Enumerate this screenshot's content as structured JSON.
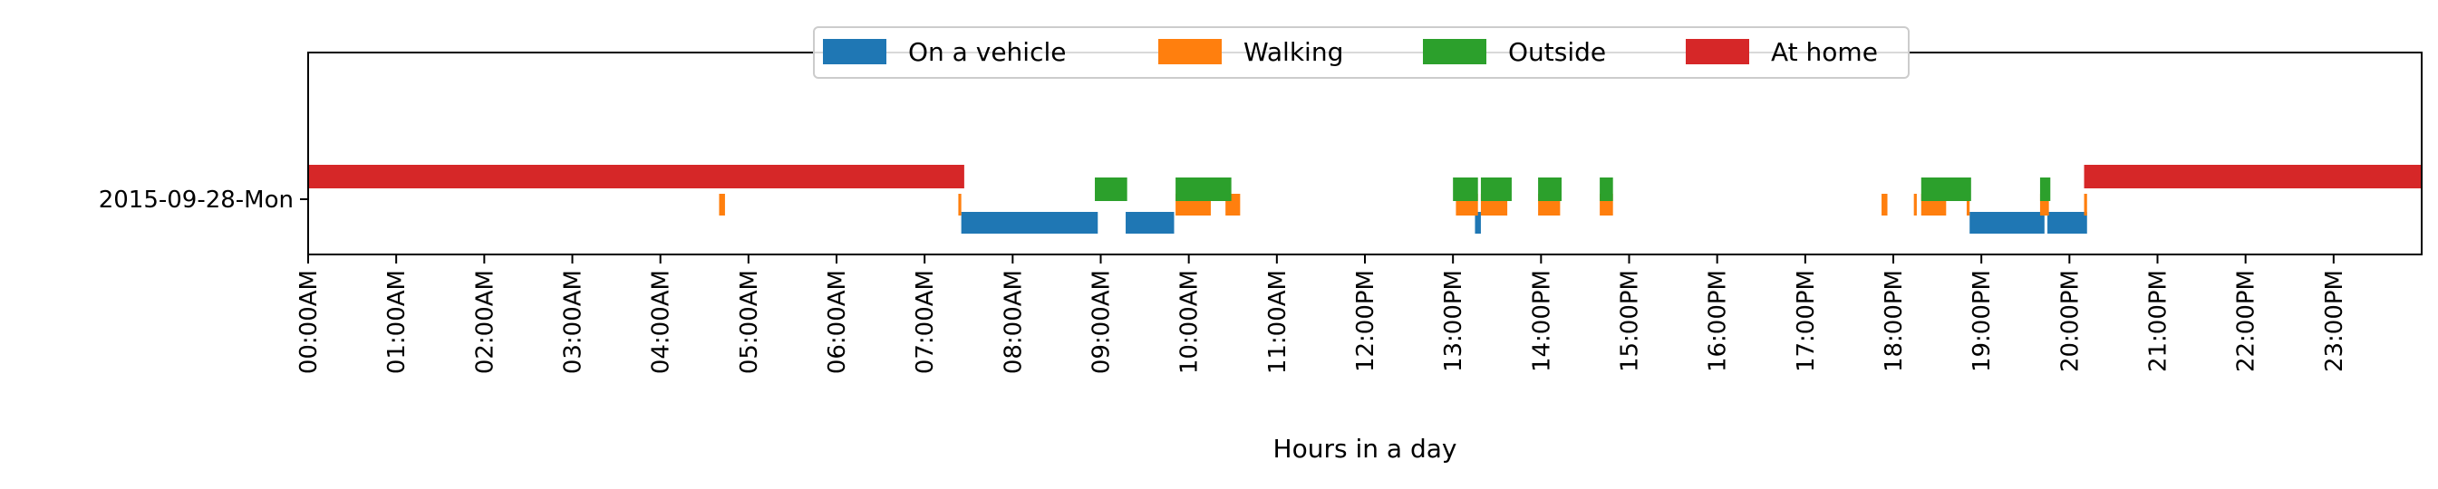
{
  "chart_data": {
    "type": "bar",
    "orientation": "horizontal-timeline",
    "xlabel": "Hours in a day",
    "y_categories": [
      "2015-09-28-Mon"
    ],
    "x_range": [
      "00:00",
      "24:00"
    ],
    "x_ticks": [
      "00:00AM",
      "01:00AM",
      "02:00AM",
      "03:00AM",
      "04:00AM",
      "05:00AM",
      "06:00AM",
      "07:00AM",
      "08:00AM",
      "09:00AM",
      "10:00AM",
      "11:00AM",
      "12:00PM",
      "13:00PM",
      "14:00PM",
      "15:00PM",
      "16:00PM",
      "17:00PM",
      "18:00PM",
      "19:00PM",
      "20:00PM",
      "21:00PM",
      "22:00PM",
      "23:00PM"
    ],
    "legend_position": "top-center",
    "legend": [
      "On a vehicle",
      "Walking",
      "Outside",
      "At home"
    ],
    "series": [
      {
        "name": "On a vehicle",
        "color": "#1f77b4",
        "intervals": [
          [
            "07:25",
            "08:58"
          ],
          [
            "09:17",
            "09:50"
          ],
          [
            "13:15",
            "13:19"
          ],
          [
            "18:52",
            "19:43"
          ],
          [
            "19:45",
            "20:12"
          ]
        ]
      },
      {
        "name": "Walking",
        "color": "#ff7f0e",
        "intervals": [
          [
            "04:40",
            "04:44"
          ],
          [
            "07:23",
            "07:25"
          ],
          [
            "09:51",
            "10:15"
          ],
          [
            "10:25",
            "10:35"
          ],
          [
            "13:02",
            "13:17"
          ],
          [
            "13:19",
            "13:37"
          ],
          [
            "13:58",
            "14:13"
          ],
          [
            "14:40",
            "14:49"
          ],
          [
            "17:52",
            "17:56"
          ],
          [
            "18:14",
            "18:16"
          ],
          [
            "18:19",
            "18:36"
          ],
          [
            "18:50",
            "18:52"
          ],
          [
            "19:40",
            "19:46"
          ],
          [
            "20:10",
            "20:12"
          ]
        ]
      },
      {
        "name": "Outside",
        "color": "#2ca02c",
        "intervals": [
          [
            "08:56",
            "09:18"
          ],
          [
            "09:51",
            "10:29"
          ],
          [
            "13:00",
            "13:17"
          ],
          [
            "13:19",
            "13:40"
          ],
          [
            "13:58",
            "14:14"
          ],
          [
            "14:40",
            "14:49"
          ],
          [
            "18:19",
            "18:53"
          ],
          [
            "19:40",
            "19:47"
          ]
        ]
      },
      {
        "name": "At home",
        "color": "#d62728",
        "intervals": [
          [
            "00:00",
            "07:27"
          ],
          [
            "20:10",
            "24:00"
          ]
        ]
      }
    ]
  }
}
